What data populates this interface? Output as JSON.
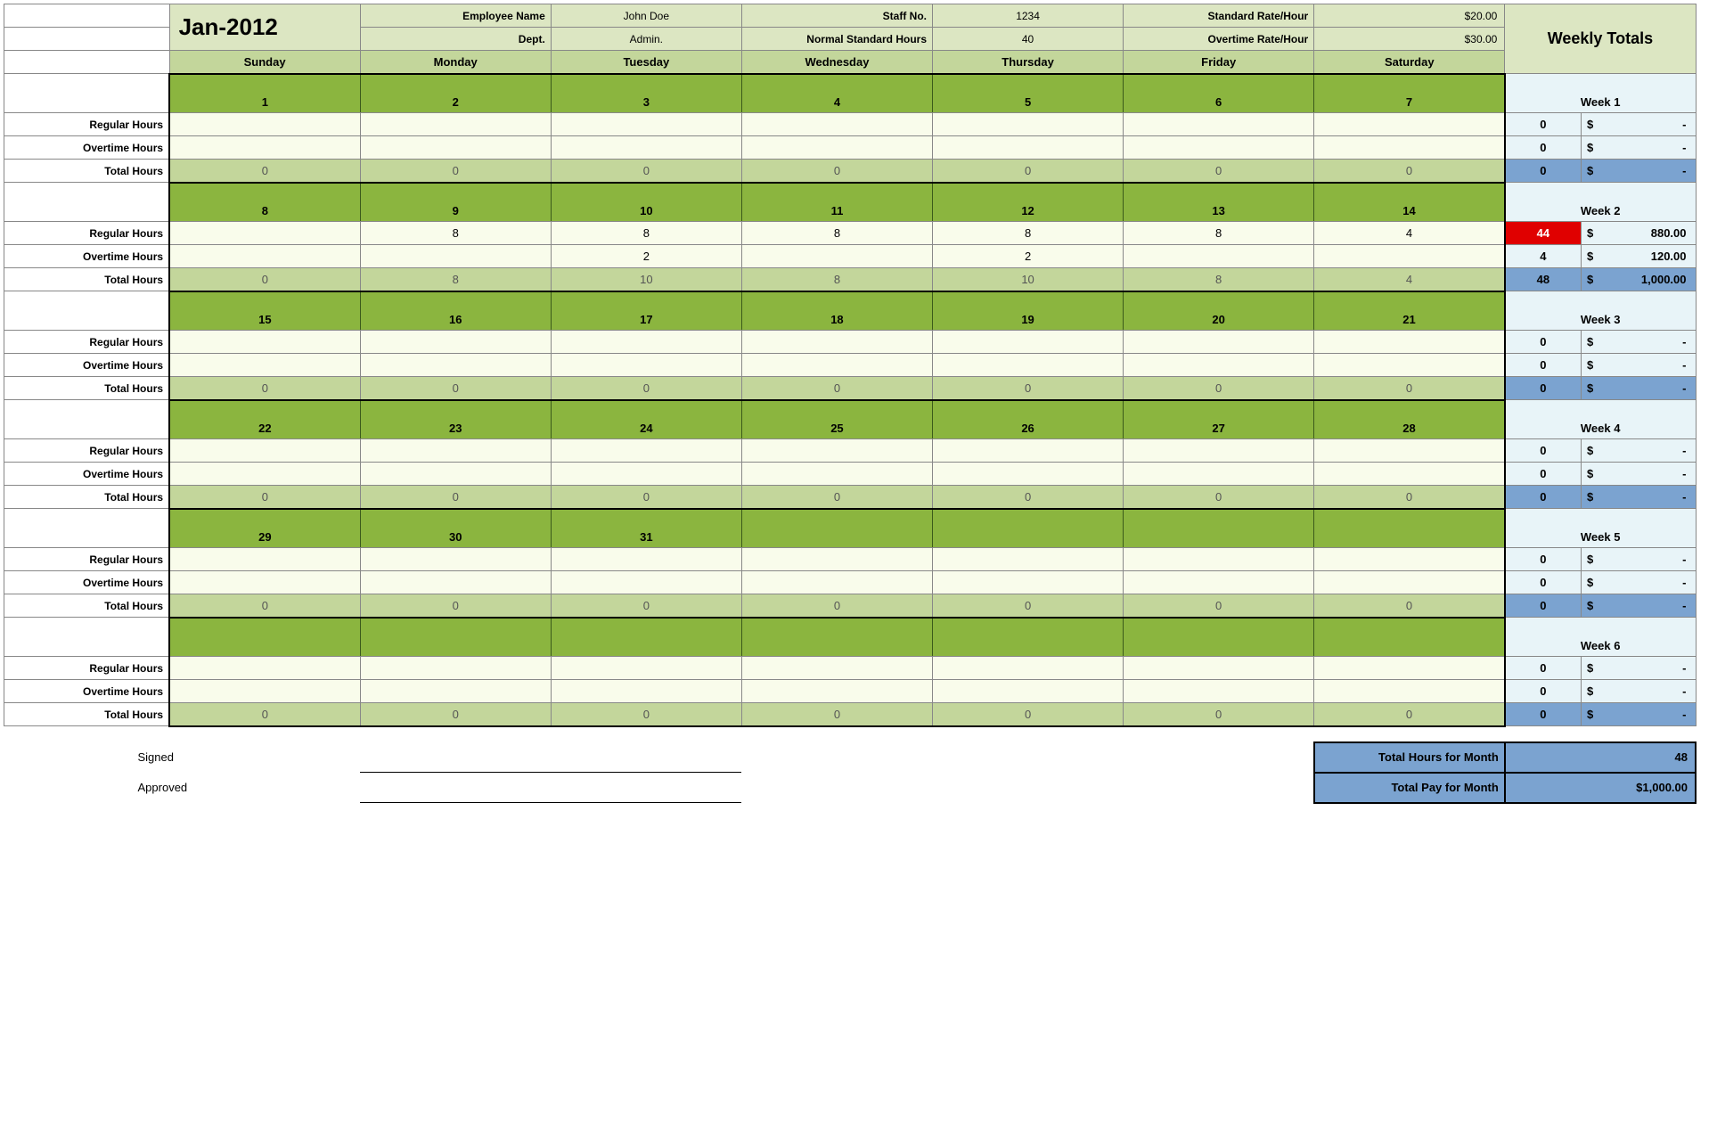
{
  "header": {
    "month_title": "Jan-2012",
    "employee_name_label": "Employee Name",
    "employee_name": "John Doe",
    "staff_no_label": "Staff No.",
    "staff_no": "1234",
    "std_rate_label": "Standard Rate/Hour",
    "std_rate": "$20.00",
    "dept_label": "Dept.",
    "dept": "Admin.",
    "normal_hours_label": "Normal Standard Hours",
    "normal_hours": "40",
    "ot_rate_label": "Overtime Rate/Hour",
    "ot_rate": "$30.00",
    "weekly_totals": "Weekly Totals",
    "days": [
      "Sunday",
      "Monday",
      "Tuesday",
      "Wednesday",
      "Thursday",
      "Friday",
      "Saturday"
    ]
  },
  "row_labels": {
    "regular": "Regular Hours",
    "overtime": "Overtime Hours",
    "total": "Total Hours"
  },
  "weeks": [
    {
      "label": "Week 1",
      "dates": [
        "1",
        "2",
        "3",
        "4",
        "5",
        "6",
        "7"
      ],
      "regular": [
        "",
        "",
        "",
        "",
        "",
        "",
        ""
      ],
      "overtime": [
        "",
        "",
        "",
        "",
        "",
        "",
        ""
      ],
      "total": [
        "0",
        "0",
        "0",
        "0",
        "0",
        "0",
        "0"
      ],
      "wt_reg_h": "0",
      "wt_reg_d_sym": "$",
      "wt_reg_d": "-",
      "wt_ot_h": "0",
      "wt_ot_d_sym": "$",
      "wt_ot_d": "-",
      "wt_tot_h": "0",
      "wt_tot_d_sym": "$",
      "wt_tot_d": "-",
      "reg_red": false
    },
    {
      "label": "Week 2",
      "dates": [
        "8",
        "9",
        "10",
        "11",
        "12",
        "13",
        "14"
      ],
      "regular": [
        "",
        "8",
        "8",
        "8",
        "8",
        "8",
        "4"
      ],
      "overtime": [
        "",
        "",
        "2",
        "",
        "2",
        "",
        ""
      ],
      "total": [
        "0",
        "8",
        "10",
        "8",
        "10",
        "8",
        "4"
      ],
      "wt_reg_h": "44",
      "wt_reg_d_sym": "$",
      "wt_reg_d": "880.00",
      "wt_ot_h": "4",
      "wt_ot_d_sym": "$",
      "wt_ot_d": "120.00",
      "wt_tot_h": "48",
      "wt_tot_d_sym": "$",
      "wt_tot_d": "1,000.00",
      "reg_red": true
    },
    {
      "label": "Week 3",
      "dates": [
        "15",
        "16",
        "17",
        "18",
        "19",
        "20",
        "21"
      ],
      "regular": [
        "",
        "",
        "",
        "",
        "",
        "",
        ""
      ],
      "overtime": [
        "",
        "",
        "",
        "",
        "",
        "",
        ""
      ],
      "total": [
        "0",
        "0",
        "0",
        "0",
        "0",
        "0",
        "0"
      ],
      "wt_reg_h": "0",
      "wt_reg_d_sym": "$",
      "wt_reg_d": "-",
      "wt_ot_h": "0",
      "wt_ot_d_sym": "$",
      "wt_ot_d": "-",
      "wt_tot_h": "0",
      "wt_tot_d_sym": "$",
      "wt_tot_d": "-",
      "reg_red": false
    },
    {
      "label": "Week 4",
      "dates": [
        "22",
        "23",
        "24",
        "25",
        "26",
        "27",
        "28"
      ],
      "regular": [
        "",
        "",
        "",
        "",
        "",
        "",
        ""
      ],
      "overtime": [
        "",
        "",
        "",
        "",
        "",
        "",
        ""
      ],
      "total": [
        "0",
        "0",
        "0",
        "0",
        "0",
        "0",
        "0"
      ],
      "wt_reg_h": "0",
      "wt_reg_d_sym": "$",
      "wt_reg_d": "-",
      "wt_ot_h": "0",
      "wt_ot_d_sym": "$",
      "wt_ot_d": "-",
      "wt_tot_h": "0",
      "wt_tot_d_sym": "$",
      "wt_tot_d": "-",
      "reg_red": false
    },
    {
      "label": "Week 5",
      "dates": [
        "29",
        "30",
        "31",
        "",
        "",
        "",
        ""
      ],
      "regular": [
        "",
        "",
        "",
        "",
        "",
        "",
        ""
      ],
      "overtime": [
        "",
        "",
        "",
        "",
        "",
        "",
        ""
      ],
      "total": [
        "0",
        "0",
        "0",
        "0",
        "0",
        "0",
        "0"
      ],
      "wt_reg_h": "0",
      "wt_reg_d_sym": "$",
      "wt_reg_d": "-",
      "wt_ot_h": "0",
      "wt_ot_d_sym": "$",
      "wt_ot_d": "-",
      "wt_tot_h": "0",
      "wt_tot_d_sym": "$",
      "wt_tot_d": "-",
      "reg_red": false
    },
    {
      "label": "Week 6",
      "dates": [
        "",
        "",
        "",
        "",
        "",
        "",
        ""
      ],
      "regular": [
        "",
        "",
        "",
        "",
        "",
        "",
        ""
      ],
      "overtime": [
        "",
        "",
        "",
        "",
        "",
        "",
        ""
      ],
      "total": [
        "0",
        "0",
        "0",
        "0",
        "0",
        "0",
        "0"
      ],
      "wt_reg_h": "0",
      "wt_reg_d_sym": "$",
      "wt_reg_d": "-",
      "wt_ot_h": "0",
      "wt_ot_d_sym": "$",
      "wt_ot_d": "-",
      "wt_tot_h": "0",
      "wt_tot_d_sym": "$",
      "wt_tot_d": "-",
      "reg_red": false
    }
  ],
  "footer": {
    "signed": "Signed",
    "approved": "Approved",
    "total_hours_label": "Total Hours for Month",
    "total_hours": "48",
    "total_pay_label": "Total Pay for Month",
    "total_pay": "$1,000.00"
  },
  "colors": {
    "header_bg": "#DCE6C2",
    "day_hdr_bg": "#C3D69B",
    "date_bg": "#8BB53F",
    "input_bg": "#F9FCEB",
    "wt_bg": "#E8F4F8",
    "wt_total_bg": "#7BA3D0",
    "red": "#E00000"
  }
}
